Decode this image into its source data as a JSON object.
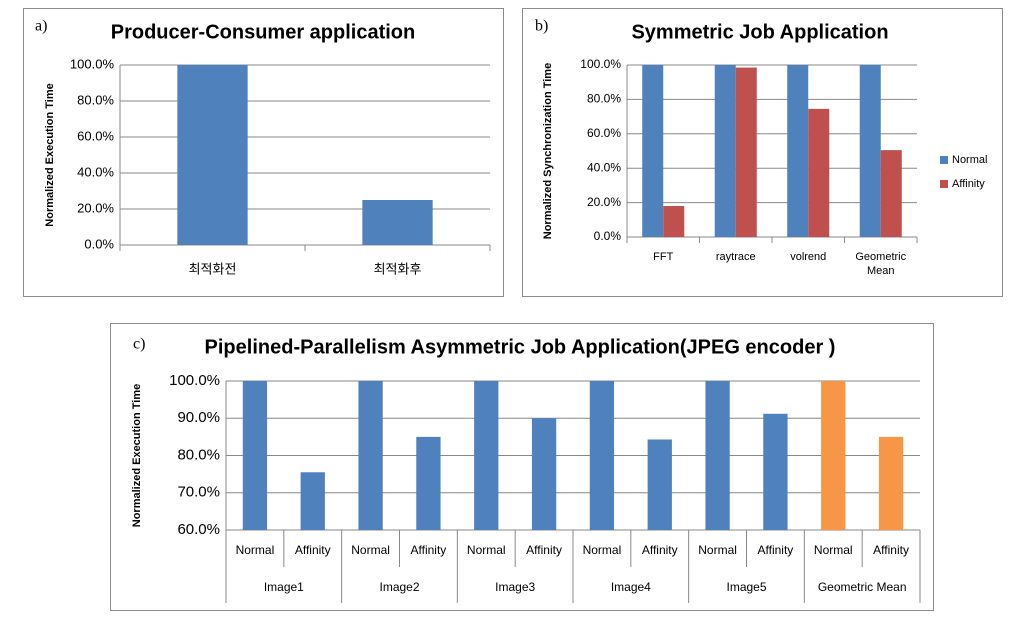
{
  "chart_data": [
    {
      "type": "bar",
      "panel_label": "a)",
      "title": "Producer-Consumer application",
      "y_label": "Normalized Execution Time",
      "categories": [
        "최적화전",
        "최적화후"
      ],
      "values": [
        100,
        25
      ],
      "color": "#4f81bd",
      "ylim": [
        0,
        100
      ],
      "yticks": [
        {
          "value": 0,
          "label": "0.0%"
        },
        {
          "value": 20,
          "label": "20.0%"
        },
        {
          "value": 40,
          "label": "40.0%"
        },
        {
          "value": 60,
          "label": "60.0%"
        },
        {
          "value": 80,
          "label": "80.0%"
        },
        {
          "value": 100,
          "label": "100.0%"
        }
      ],
      "grid": true
    },
    {
      "type": "bar",
      "panel_label": "b)",
      "title": "Symmetric Job Application",
      "y_label": "Normalized Synchronization Time",
      "categories": [
        "FFT",
        "raytrace",
        "volrend",
        "Geometric Mean"
      ],
      "series": [
        {
          "name": "Normal",
          "color": "#4f81bd",
          "values": [
            100,
            100,
            100,
            100
          ]
        },
        {
          "name": "Affinity",
          "color": "#c0504d",
          "values": [
            18,
            98.5,
            74.5,
            50.5
          ]
        }
      ],
      "ylim": [
        0,
        100
      ],
      "yticks": [
        {
          "value": 0,
          "label": "0.0%"
        },
        {
          "value": 20,
          "label": "20.0%"
        },
        {
          "value": 40,
          "label": "40.0%"
        },
        {
          "value": 60,
          "label": "60.0%"
        },
        {
          "value": 80,
          "label": "80.0%"
        },
        {
          "value": 100,
          "label": "100.0%"
        }
      ],
      "grid": true,
      "legend": "right"
    },
    {
      "type": "bar",
      "panel_label": "c)",
      "title": "Pipelined-Parallelism Asymmetric Job Application(JPEG encoder )",
      "y_label": "Normalized Execution Time",
      "categories": [
        "Image1",
        "Image2",
        "Image3",
        "Image4",
        "Image5",
        "Geometric Mean"
      ],
      "series": [
        {
          "name": "Normal",
          "colors": [
            "#4f81bd",
            "#4f81bd",
            "#4f81bd",
            "#4f81bd",
            "#4f81bd",
            "#f79646"
          ],
          "values": [
            100,
            100,
            100,
            100,
            100,
            100
          ]
        },
        {
          "name": "Affinity",
          "colors": [
            "#4f81bd",
            "#4f81bd",
            "#4f81bd",
            "#4f81bd",
            "#4f81bd",
            "#f79646"
          ],
          "values": [
            75.5,
            85,
            90,
            84.3,
            91.2,
            85
          ]
        }
      ],
      "ylim": [
        60,
        100
      ],
      "yticks": [
        {
          "value": 60,
          "label": "60.0%"
        },
        {
          "value": 70,
          "label": "70.0%"
        },
        {
          "value": 80,
          "label": "80.0%"
        },
        {
          "value": 90,
          "label": "90.0%"
        },
        {
          "value": 100,
          "label": "100.0%"
        }
      ],
      "grid": true
    }
  ]
}
